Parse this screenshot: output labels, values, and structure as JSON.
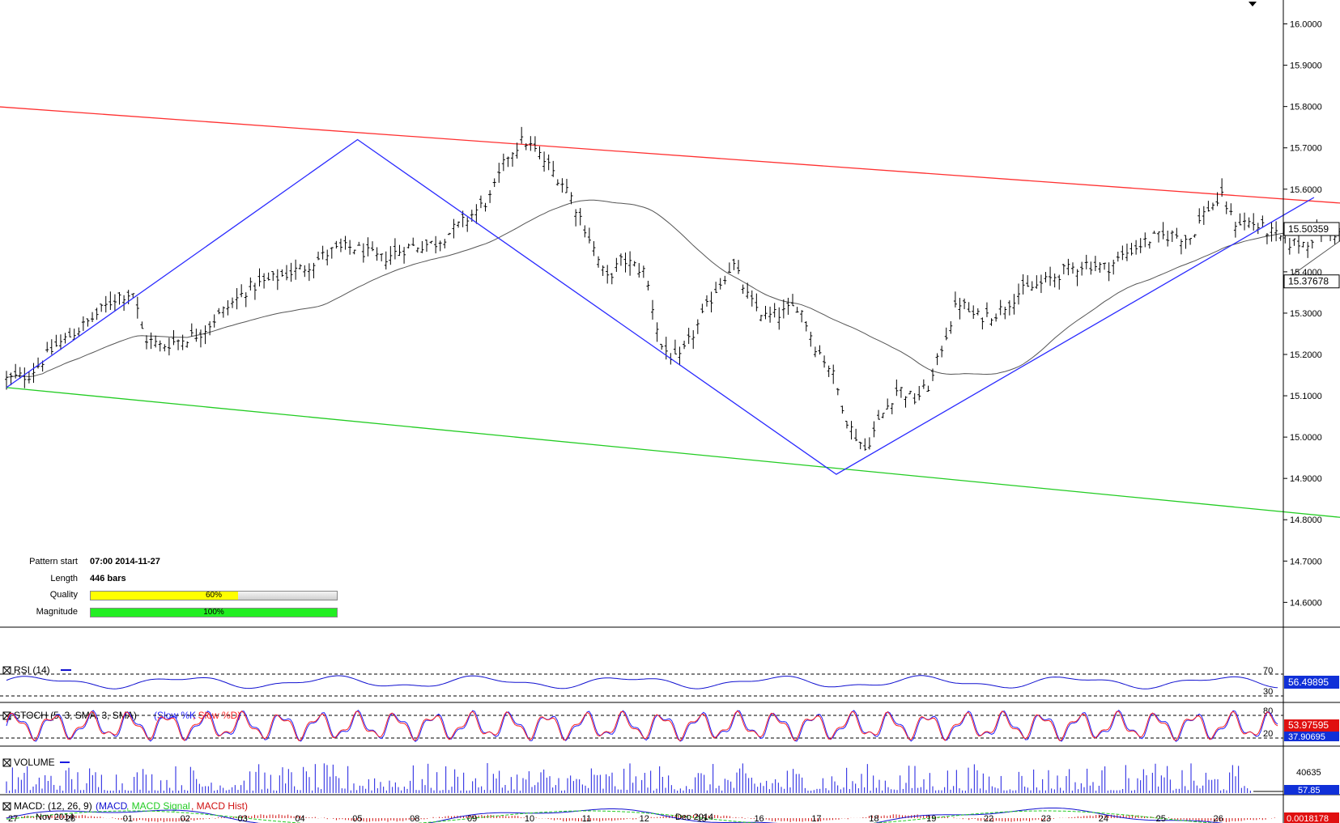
{
  "info": {
    "pattern_start_label": "Pattern start",
    "pattern_start_value": "07:00 2014-11-27",
    "length_label": "Length",
    "length_value": "446 bars",
    "quality_label": "Quality",
    "quality_value": "60%",
    "quality_fraction": 0.6,
    "magnitude_label": "Magnitude",
    "magnitude_value": "100%",
    "magnitude_fraction": 1.0
  },
  "colors": {
    "resistance": "#ff3030",
    "support": "#22cc22",
    "pattern": "#2a2aff",
    "ma": "#555555",
    "price": "#000000",
    "rsi": "#1010d0",
    "stoch_k": "#2020ff",
    "stoch_d": "#ff2020",
    "volume": "#1a1ae0",
    "macd": "#1010d0",
    "macd_signal": "#22cc22",
    "macd_hist": "#d01010",
    "badge_blue": "#1030d8",
    "badge_red": "#e01010"
  },
  "chart_data": {
    "type": "line",
    "main": {
      "yaxis_ticks": [
        "16.0000",
        "15.9000",
        "15.8000",
        "15.7000",
        "15.6000",
        "15.5000",
        "15.4000",
        "15.3000",
        "15.2000",
        "15.1000",
        "15.0000",
        "14.9000",
        "14.8000",
        "14.7000",
        "14.6000"
      ],
      "ylim": [
        14.54,
        16.05
      ],
      "price_badge": "15.50359",
      "ma_badge": "15.37678",
      "last_price": 15.5036,
      "last_ma": 15.3768,
      "pattern_points": [
        {
          "t": 0.0,
          "y": 15.12
        },
        {
          "t": 6.38,
          "y": 15.72
        },
        {
          "t": 15.08,
          "y": 14.91
        },
        {
          "t": 23.76,
          "y": 15.58
        }
      ],
      "resistance_line": [
        {
          "t": -0.2,
          "y": 15.8
        },
        {
          "t": 27.0,
          "y": 15.54
        }
      ],
      "support_line": [
        {
          "t": 0.0,
          "y": 15.12
        },
        {
          "t": 27.0,
          "y": 14.77
        }
      ],
      "price_anchors": [
        [
          0.0,
          15.14
        ],
        [
          0.4,
          15.15
        ],
        [
          0.9,
          15.22
        ],
        [
          1.5,
          15.28
        ],
        [
          2.0,
          15.34
        ],
        [
          2.3,
          15.35
        ],
        [
          2.5,
          15.24
        ],
        [
          2.8,
          15.22
        ],
        [
          3.5,
          15.25
        ],
        [
          3.9,
          15.3
        ],
        [
          4.4,
          15.36
        ],
        [
          5.0,
          15.39
        ],
        [
          5.4,
          15.41
        ],
        [
          5.9,
          15.45
        ],
        [
          6.3,
          15.46
        ],
        [
          6.8,
          15.43
        ],
        [
          7.3,
          15.46
        ],
        [
          7.8,
          15.47
        ],
        [
          8.3,
          15.52
        ],
        [
          8.8,
          15.58
        ],
        [
          9.1,
          15.68
        ],
        [
          9.4,
          15.72
        ],
        [
          9.7,
          15.68
        ],
        [
          10.2,
          15.6
        ],
        [
          10.6,
          15.48
        ],
        [
          10.9,
          15.38
        ],
        [
          11.2,
          15.43
        ],
        [
          11.6,
          15.4
        ],
        [
          11.9,
          15.22
        ],
        [
          12.2,
          15.18
        ],
        [
          12.6,
          15.28
        ],
        [
          12.9,
          15.36
        ],
        [
          13.2,
          15.42
        ],
        [
          13.5,
          15.33
        ],
        [
          13.8,
          15.29
        ],
        [
          14.1,
          15.3
        ],
        [
          14.4,
          15.32
        ],
        [
          14.7,
          15.22
        ],
        [
          15.0,
          15.16
        ],
        [
          15.3,
          15.03
        ],
        [
          15.6,
          14.97
        ],
        [
          15.9,
          15.05
        ],
        [
          16.2,
          15.12
        ],
        [
          16.5,
          15.09
        ],
        [
          16.8,
          15.13
        ],
        [
          17.0,
          15.22
        ],
        [
          17.3,
          15.33
        ],
        [
          17.6,
          15.29
        ],
        [
          18.0,
          15.3
        ],
        [
          18.4,
          15.35
        ],
        [
          18.8,
          15.37
        ],
        [
          19.2,
          15.4
        ],
        [
          19.6,
          15.42
        ],
        [
          20.0,
          15.41
        ],
        [
          20.4,
          15.45
        ],
        [
          20.8,
          15.48
        ],
        [
          21.2,
          15.49
        ],
        [
          21.5,
          15.48
        ],
        [
          21.8,
          15.55
        ],
        [
          22.1,
          15.58
        ],
        [
          22.3,
          15.52
        ],
        [
          22.6,
          15.52
        ],
        [
          22.9,
          15.5
        ],
        [
          23.3,
          15.47
        ],
        [
          23.6,
          15.47
        ],
        [
          23.9,
          15.5
        ],
        [
          24.3,
          15.49
        ],
        [
          24.6,
          15.5
        ]
      ]
    },
    "indicators": {
      "rsi": {
        "title": "RSI (14)",
        "levels": [
          "70",
          "30"
        ],
        "value": "56.49895"
      },
      "stoch": {
        "title": "STOCH (5, 3, SMA, 3, SMA)",
        "slow_k": "Slow %K",
        "slow_d": "Slow %D",
        "levels": [
          "80",
          "20"
        ],
        "value_d": "53.97595",
        "value_k": "37.90695"
      },
      "volume": {
        "title": "VOLUME",
        "axis_value": "40635",
        "value": "57.85"
      },
      "macd": {
        "title": "MACD: (12, 26, 9)",
        "line": "MACD",
        "signal": "MACD Signal",
        "hist": "MACD Hist",
        "value": "0.0018178"
      }
    },
    "xaxis": {
      "labels": [
        "27",
        "28",
        "01",
        "02",
        "03",
        "04",
        "05",
        "08",
        "09",
        "10",
        "11",
        "12",
        "15",
        "16",
        "17",
        "18",
        "19",
        "22",
        "23",
        "24",
        "25",
        "26"
      ],
      "months": [
        "Nov 2014",
        "Dec 2014"
      ]
    }
  }
}
